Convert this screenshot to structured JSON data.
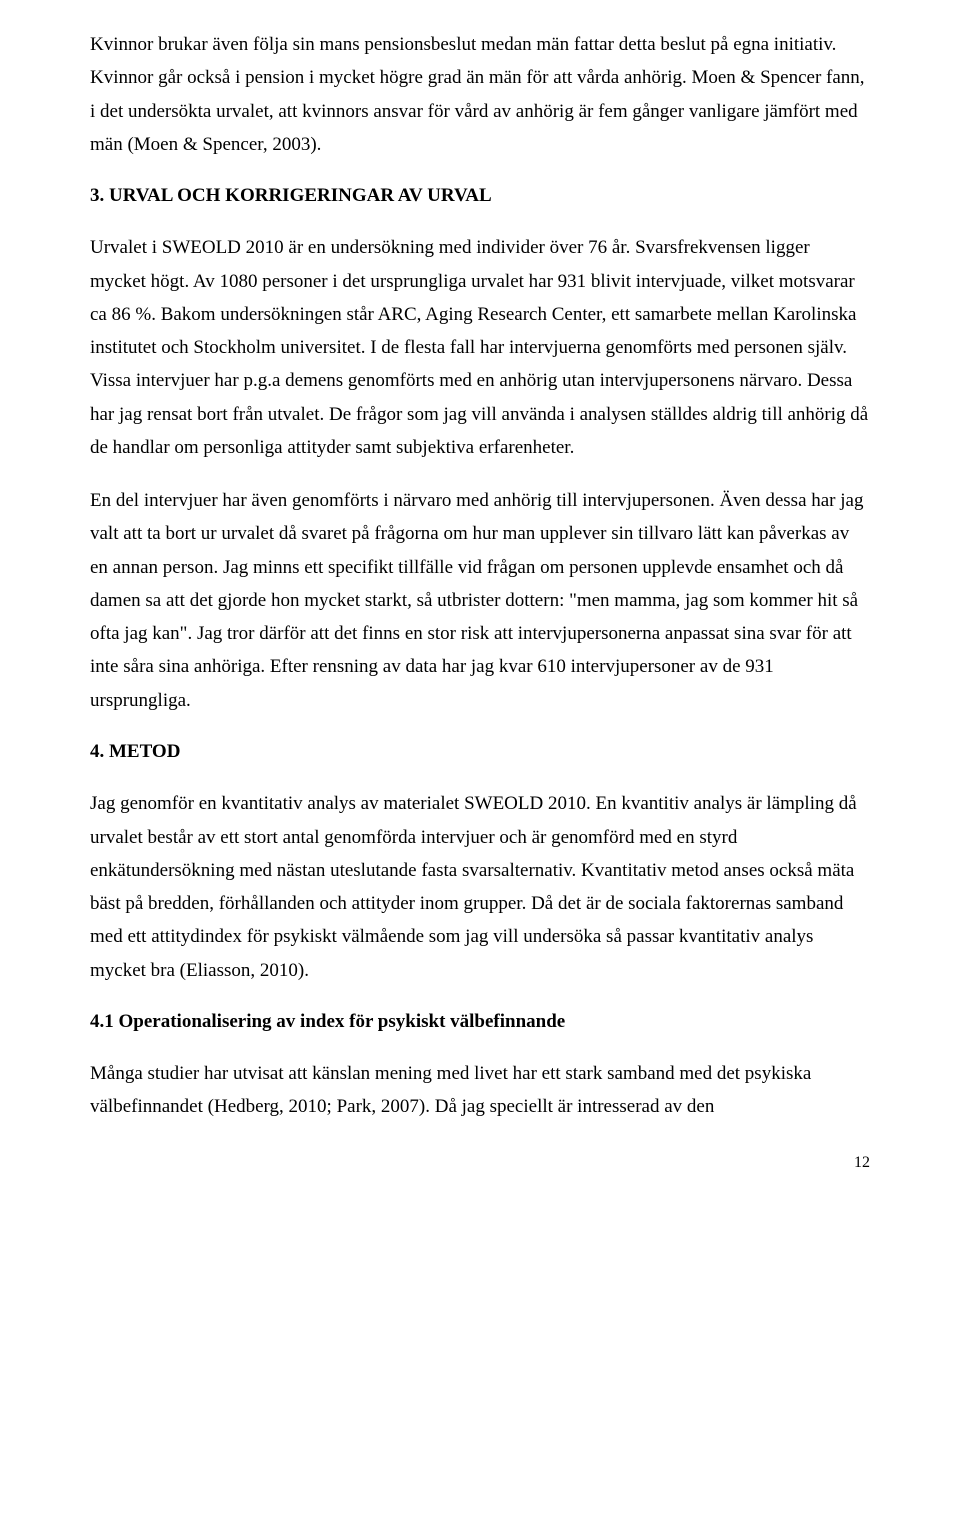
{
  "paragraphs": {
    "p1": "Kvinnor brukar även följa sin mans pensionsbeslut medan män fattar detta beslut på egna initiativ. Kvinnor går också i pension i mycket högre grad än män för att vårda anhörig. Moen & Spencer fann, i det undersökta urvalet, att kvinnors ansvar för vård av anhörig är fem gånger vanligare jämfört med män (Moen & Spencer, 2003).",
    "p2": "Urvalet i SWEOLD 2010 är en undersökning med individer över 76 år. Svarsfrekvensen ligger mycket högt. Av 1080 personer i det ursprungliga urvalet har 931 blivit intervjuade, vilket motsvarar ca 86 %. Bakom undersökningen står ARC, Aging Research Center, ett samarbete mellan Karolinska institutet och Stockholm universitet. I de flesta fall har intervjuerna genomförts med personen själv. Vissa intervjuer har p.g.a demens genomförts med en anhörig utan intervjupersonens närvaro. Dessa har jag rensat bort från utvalet. De frågor som jag vill använda i analysen ställdes aldrig till anhörig då de handlar om personliga attityder samt subjektiva erfarenheter.",
    "p3": "En del intervjuer har även genomförts i närvaro med anhörig till intervjupersonen. Även dessa har jag valt att ta bort ur urvalet då svaret på frågorna om hur man upplever sin tillvaro lätt kan påverkas av en annan person. Jag minns ett specifikt tillfälle vid frågan om personen upplevde ensamhet och då damen sa att det gjorde hon mycket starkt, så utbrister dottern: \"men mamma, jag som kommer hit så ofta jag kan\". Jag tror därför att det finns en stor risk att intervjupersonerna anpassat sina svar för att inte såra sina anhöriga. Efter rensning av data har jag kvar 610 intervjupersoner av de 931 ursprungliga.",
    "p4": "Jag genomför en kvantitativ analys av materialet SWEOLD 2010. En kvantitiv analys är lämpling då urvalet består av ett stort antal genomförda intervjuer och är genomförd med en styrd enkätundersökning med nästan uteslutande fasta svarsalternativ. Kvantitativ metod anses också mäta bäst på bredden, förhållanden och attityder inom grupper. Då det är de sociala faktorernas samband med ett attitydindex för psykiskt välmående som jag vill undersöka så passar kvantitativ analys mycket bra (Eliasson, 2010).",
    "p5": "Många studier har utvisat att känslan mening med livet har ett stark samband med det psykiska välbefinnandet (Hedberg, 2010; Park, 2007). Då jag speciellt är intresserad av den"
  },
  "headings": {
    "h1": "3. URVAL OCH KORRIGERINGAR AV URVAL",
    "h2": "4. METOD",
    "h3": "4.1 Operationalisering av index för psykiskt välbefinnande"
  },
  "pageNumber": "12"
}
